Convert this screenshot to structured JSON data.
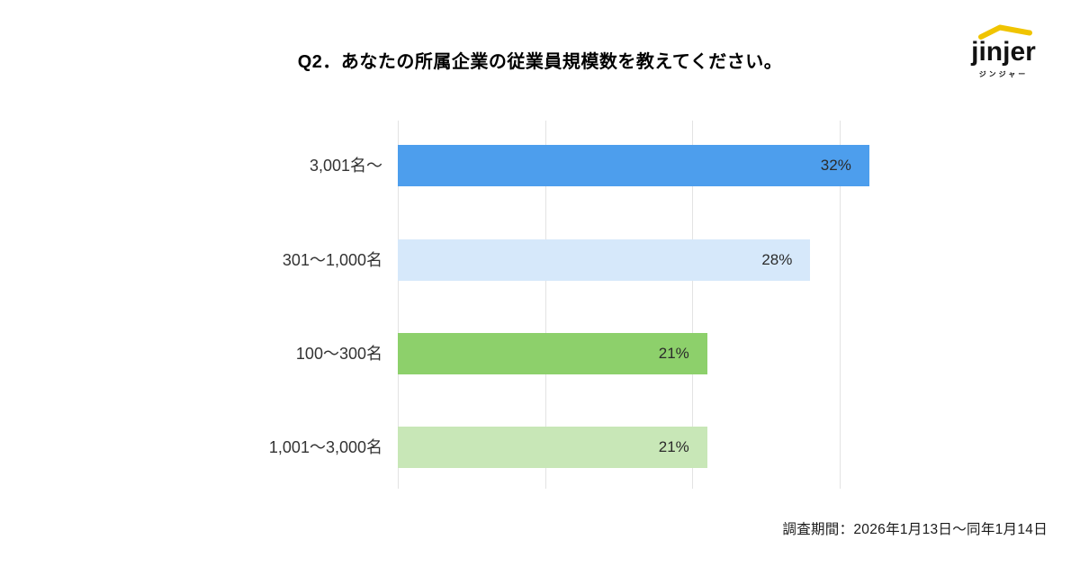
{
  "title": "Q2．あなたの所属企業の従業員規模数を教えてください。",
  "logo": {
    "text": "jinjer",
    "subtext": "ジンジャー",
    "mark_color": "#F0C400",
    "text_color": "#121212"
  },
  "footer": {
    "survey_period": "調査期間：2026年1月13日〜同年1月14日"
  },
  "chart_data": {
    "type": "bar",
    "orientation": "horizontal",
    "title": "Q2．あなたの所属企業の従業員規模数を教えてください。",
    "categories": [
      "3,001名〜",
      "301〜1,000名",
      "100〜300名",
      "1,001〜3,000名"
    ],
    "values": [
      32,
      28,
      21,
      21
    ],
    "unit": "%",
    "value_labels": [
      "32%",
      "28%",
      "21%",
      "21%"
    ],
    "bar_colors": [
      "#4D9EED",
      "#D6E8FA",
      "#8DD06B",
      "#C8E7B7"
    ],
    "xlim": [
      0,
      33.5
    ],
    "gridlines_percent": [
      0,
      10,
      20,
      30
    ],
    "grid": true,
    "legend": false,
    "value_label_position": "inside-end",
    "gridline_color": "#E3E3E3"
  }
}
